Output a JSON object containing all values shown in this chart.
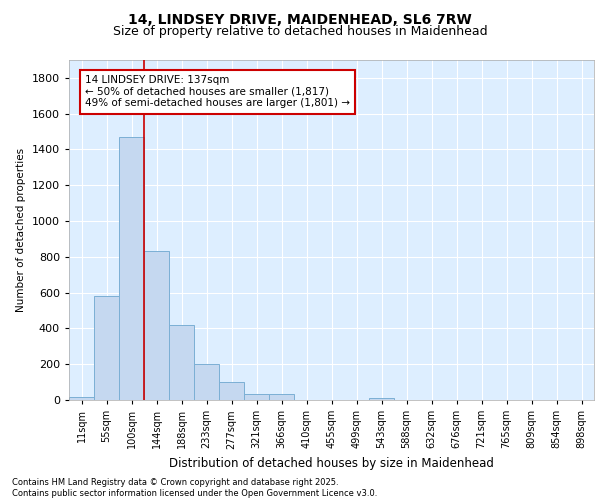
{
  "title_line1": "14, LINDSEY DRIVE, MAIDENHEAD, SL6 7RW",
  "title_line2": "Size of property relative to detached houses in Maidenhead",
  "xlabel": "Distribution of detached houses by size in Maidenhead",
  "ylabel": "Number of detached properties",
  "categories": [
    "11sqm",
    "55sqm",
    "100sqm",
    "144sqm",
    "188sqm",
    "233sqm",
    "277sqm",
    "321sqm",
    "366sqm",
    "410sqm",
    "455sqm",
    "499sqm",
    "543sqm",
    "588sqm",
    "632sqm",
    "676sqm",
    "721sqm",
    "765sqm",
    "809sqm",
    "854sqm",
    "898sqm"
  ],
  "values": [
    18,
    580,
    1470,
    830,
    420,
    200,
    100,
    35,
    35,
    0,
    0,
    0,
    10,
    0,
    0,
    0,
    0,
    0,
    0,
    0,
    0
  ],
  "bar_color": "#c5d8f0",
  "bar_edge_color": "#7bafd4",
  "vline_color": "#cc0000",
  "vline_x": 2.5,
  "ylim": [
    0,
    1900
  ],
  "yticks": [
    0,
    200,
    400,
    600,
    800,
    1000,
    1200,
    1400,
    1600,
    1800
  ],
  "annotation_text": "14 LINDSEY DRIVE: 137sqm\n← 50% of detached houses are smaller (1,817)\n49% of semi-detached houses are larger (1,801) →",
  "annotation_box_facecolor": "#ffffff",
  "annotation_box_edgecolor": "#cc0000",
  "footnote": "Contains HM Land Registry data © Crown copyright and database right 2025.\nContains public sector information licensed under the Open Government Licence v3.0.",
  "bg_color": "#ffffff",
  "plot_bg_color": "#ddeeff",
  "grid_color": "#ffffff",
  "title1_fontsize": 10,
  "title2_fontsize": 9
}
